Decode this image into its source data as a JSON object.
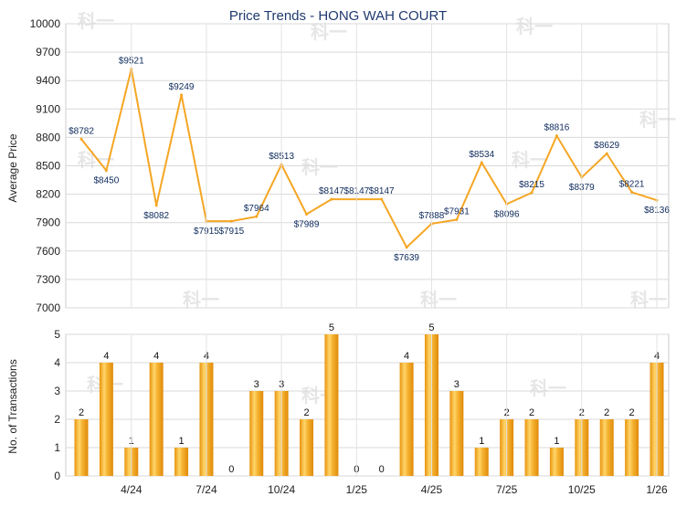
{
  "chart_data": [
    {
      "type": "line",
      "title": "Price Trends - HONG WAH COURT",
      "ylabel": "Average Price",
      "ylim": [
        7000,
        10000
      ],
      "yticks": [
        7000,
        7300,
        7600,
        7900,
        8200,
        8500,
        8800,
        9100,
        9400,
        9700,
        10000
      ],
      "grid": true,
      "color": "#f5a623",
      "values": [
        8782,
        8450,
        9521,
        8082,
        9249,
        7915,
        7915,
        7964,
        8513,
        7989,
        8147,
        8147,
        8147,
        7639,
        7888,
        7931,
        8534,
        8096,
        8215,
        8816,
        8379,
        8629,
        8221,
        8136
      ],
      "labels": [
        "$8782",
        "$8450",
        "$9521",
        "$8082",
        "$9249",
        "$7915",
        "$7915",
        "$7964",
        "$8513",
        "$7989",
        "$8147",
        "$8147",
        "$8147",
        "$7639",
        "$7888",
        "$7931",
        "$8534",
        "$8096",
        "$8215",
        "$8816",
        "$8379",
        "$8629",
        "$8221",
        "$8136"
      ]
    },
    {
      "type": "bar",
      "ylabel": "No. of Transactions",
      "ylim": [
        0,
        5
      ],
      "yticks": [
        0,
        1,
        2,
        3,
        4,
        5
      ],
      "grid": true,
      "color": "#f5a623",
      "values": [
        2,
        4,
        1,
        4,
        1,
        4,
        0,
        3,
        3,
        2,
        5,
        0,
        0,
        4,
        5,
        3,
        1,
        2,
        2,
        1,
        2,
        2,
        2,
        4
      ],
      "xtick_labels": [
        "4/24",
        "7/24",
        "10/24",
        "1/25",
        "4/25",
        "7/25",
        "10/25",
        "1/26"
      ]
    }
  ],
  "watermark": "科一"
}
